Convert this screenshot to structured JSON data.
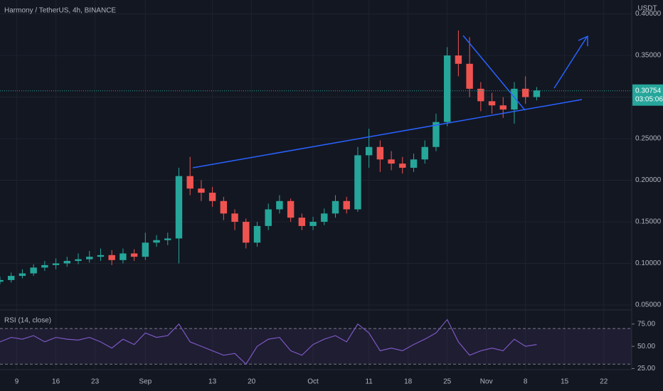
{
  "chart_data": {
    "type": "candlestick",
    "title": "Harmony / TetherUS, 4h, BINANCE",
    "unit": "USDT",
    "up_color": "#26a69a",
    "down_color": "#ef5350",
    "grid": true,
    "x": [
      -3,
      -1,
      1,
      3,
      5,
      7,
      9,
      11,
      13,
      15,
      17,
      19,
      21,
      23,
      25,
      27,
      29,
      31,
      33,
      35,
      37,
      39,
      41,
      43,
      45,
      47,
      49,
      51,
      53,
      55,
      57,
      59,
      61,
      63,
      65,
      67,
      69,
      71,
      73,
      75,
      77,
      79,
      81,
      83,
      85,
      87,
      89,
      91,
      93
    ],
    "open": [
      0.078,
      0.08,
      0.085,
      0.088,
      0.095,
      0.098,
      0.1,
      0.103,
      0.105,
      0.108,
      0.11,
      0.104,
      0.112,
      0.108,
      0.125,
      0.128,
      0.13,
      0.205,
      0.19,
      0.185,
      0.175,
      0.16,
      0.15,
      0.125,
      0.145,
      0.165,
      0.175,
      0.155,
      0.145,
      0.15,
      0.16,
      0.175,
      0.165,
      0.23,
      0.24,
      0.225,
      0.22,
      0.215,
      0.225,
      0.24,
      0.27,
      0.35,
      0.34,
      0.31,
      0.295,
      0.29,
      0.285,
      0.31,
      0.3
    ],
    "high": [
      0.084,
      0.089,
      0.093,
      0.099,
      0.103,
      0.106,
      0.108,
      0.112,
      0.115,
      0.118,
      0.116,
      0.118,
      0.117,
      0.137,
      0.134,
      0.137,
      0.215,
      0.228,
      0.2,
      0.192,
      0.18,
      0.165,
      0.154,
      0.15,
      0.172,
      0.182,
      0.178,
      0.16,
      0.156,
      0.166,
      0.182,
      0.18,
      0.24,
      0.262,
      0.248,
      0.235,
      0.228,
      0.232,
      0.248,
      0.28,
      0.36,
      0.38,
      0.372,
      0.318,
      0.305,
      0.3,
      0.318,
      0.325,
      0.312
    ],
    "low": [
      0.075,
      0.077,
      0.082,
      0.085,
      0.091,
      0.093,
      0.096,
      0.099,
      0.101,
      0.103,
      0.098,
      0.1,
      0.103,
      0.104,
      0.12,
      0.122,
      0.1,
      0.182,
      0.175,
      0.168,
      0.152,
      0.14,
      0.118,
      0.12,
      0.14,
      0.16,
      0.15,
      0.14,
      0.14,
      0.146,
      0.155,
      0.16,
      0.162,
      0.215,
      0.21,
      0.212,
      0.208,
      0.21,
      0.22,
      0.235,
      0.265,
      0.325,
      0.3,
      0.283,
      0.28,
      0.275,
      0.268,
      0.292,
      0.296
    ],
    "close": [
      0.08,
      0.085,
      0.088,
      0.095,
      0.098,
      0.1,
      0.103,
      0.105,
      0.108,
      0.11,
      0.104,
      0.112,
      0.108,
      0.125,
      0.128,
      0.13,
      0.205,
      0.19,
      0.185,
      0.175,
      0.16,
      0.15,
      0.125,
      0.145,
      0.165,
      0.175,
      0.155,
      0.145,
      0.15,
      0.16,
      0.175,
      0.165,
      0.23,
      0.24,
      0.225,
      0.22,
      0.215,
      0.225,
      0.24,
      0.27,
      0.35,
      0.34,
      0.31,
      0.295,
      0.29,
      0.285,
      0.31,
      0.3,
      0.308
    ],
    "xlim": [
      -3,
      110
    ],
    "xticks": [
      {
        "value": 0,
        "label": "9"
      },
      {
        "value": 7,
        "label": "16"
      },
      {
        "value": 14,
        "label": "23"
      },
      {
        "value": 23,
        "label": "Sep"
      },
      {
        "value": 35,
        "label": "13"
      },
      {
        "value": 42,
        "label": "20"
      },
      {
        "value": 53,
        "label": "Oct"
      },
      {
        "value": 63,
        "label": "11"
      },
      {
        "value": 70,
        "label": "18"
      },
      {
        "value": 77,
        "label": "25"
      },
      {
        "value": 84,
        "label": "Nov"
      },
      {
        "value": 91,
        "label": "8"
      },
      {
        "value": 98,
        "label": "15"
      },
      {
        "value": 105,
        "label": "22"
      }
    ],
    "ylim": [
      0.0449,
      0.4167
    ],
    "yticks": [
      {
        "value": 0.05,
        "label": "0.05000"
      },
      {
        "value": 0.1,
        "label": "0.10000"
      },
      {
        "value": 0.15,
        "label": "0.15000"
      },
      {
        "value": 0.2,
        "label": "0.20000"
      },
      {
        "value": 0.25,
        "label": "0.25000"
      },
      {
        "value": 0.3,
        "label": "0.30000"
      },
      {
        "value": 0.35,
        "label": "0.35000"
      },
      {
        "value": 0.4,
        "label": "0.40000"
      }
    ],
    "last_price": {
      "value": 0.30754,
      "label": "0.30754"
    },
    "countdown": "03:05:06",
    "rsi": {
      "name": "RSI (14, close)",
      "color": "#7e57c2",
      "values": [
        55,
        60,
        58,
        62,
        55,
        60,
        58,
        57,
        60,
        55,
        48,
        58,
        52,
        65,
        60,
        62,
        75,
        55,
        50,
        45,
        40,
        42,
        30,
        50,
        58,
        60,
        45,
        40,
        52,
        58,
        62,
        55,
        75,
        65,
        45,
        48,
        45,
        52,
        58,
        65,
        80,
        55,
        40,
        45,
        48,
        45,
        58,
        50,
        52
      ],
      "ylim": [
        11,
        90
      ],
      "bands": [
        70,
        30
      ],
      "yticks": [
        {
          "value": 75,
          "label": "75.00"
        },
        {
          "value": 50,
          "label": "50.00"
        },
        {
          "value": 25,
          "label": "25.00"
        }
      ]
    }
  }
}
